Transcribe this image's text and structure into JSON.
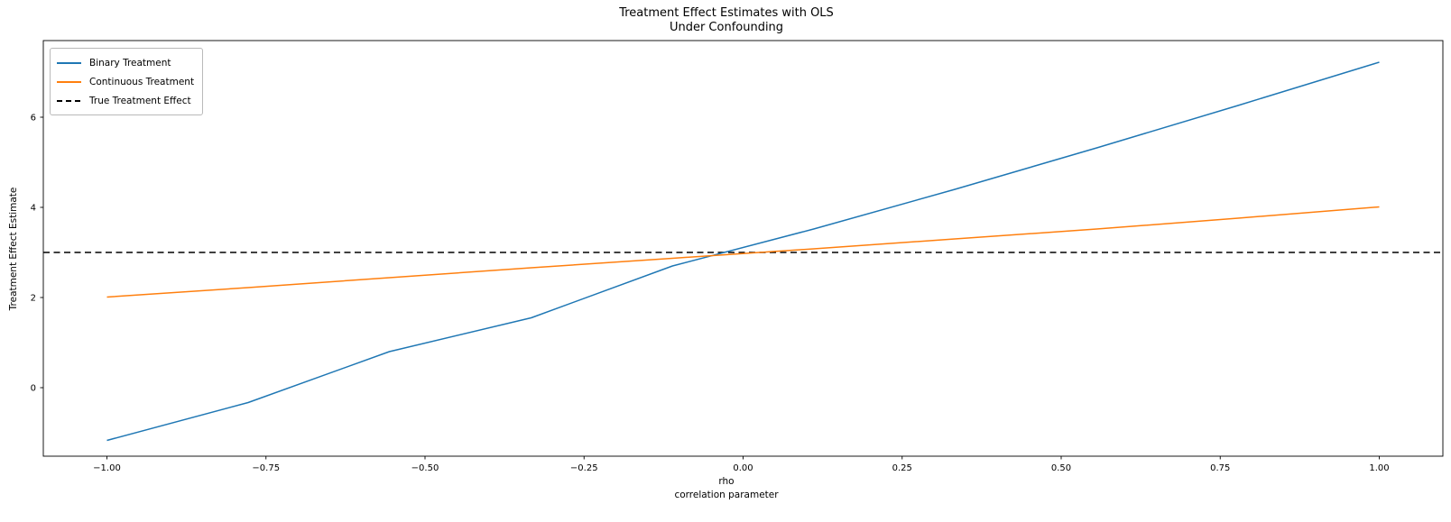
{
  "figure": {
    "background": "#ffffff"
  },
  "chart_data": {
    "type": "line",
    "title_line1": "Treatment Effect Estimates with OLS",
    "title_line2": "Under Confounding",
    "xlabel_line1": "rho",
    "xlabel_line2": "correlation parameter",
    "ylabel": "Treatment Effect Estimate",
    "x": [
      -1.0,
      -0.778,
      -0.556,
      -0.333,
      -0.111,
      0.111,
      0.333,
      0.556,
      0.778,
      1.0
    ],
    "series": [
      {
        "name": "Binary Treatment",
        "color": "#1f77b4",
        "dash": false,
        "values": [
          -1.17,
          -0.33,
          0.8,
          1.55,
          2.7,
          3.52,
          4.4,
          5.32,
          6.26,
          7.22
        ]
      },
      {
        "name": "Continuous Treatment",
        "color": "#ff7f0e",
        "dash": false,
        "values": [
          2.01,
          2.22,
          2.44,
          2.66,
          2.87,
          3.08,
          3.3,
          3.52,
          3.76,
          4.01
        ]
      }
    ],
    "reference_line": {
      "name": "True Treatment Effect",
      "value": 3,
      "color": "#000000",
      "dash": true
    },
    "xticks": [
      -1.0,
      -0.75,
      -0.5,
      -0.25,
      0.0,
      0.25,
      0.5,
      0.75,
      1.0
    ],
    "xtick_labels": [
      "−1.00",
      "−0.75",
      "−0.50",
      "−0.25",
      "0.00",
      "0.25",
      "0.50",
      "0.75",
      "1.00"
    ],
    "yticks": [
      0,
      2,
      4,
      6
    ],
    "ytick_labels": [
      "0",
      "2",
      "4",
      "6"
    ],
    "xlim": [
      -1.1,
      1.1
    ],
    "ylim": [
      -1.52,
      7.7
    ],
    "grid": false,
    "legend_position": "upper left",
    "line_width": 1.5,
    "axis_color": "#000000"
  }
}
